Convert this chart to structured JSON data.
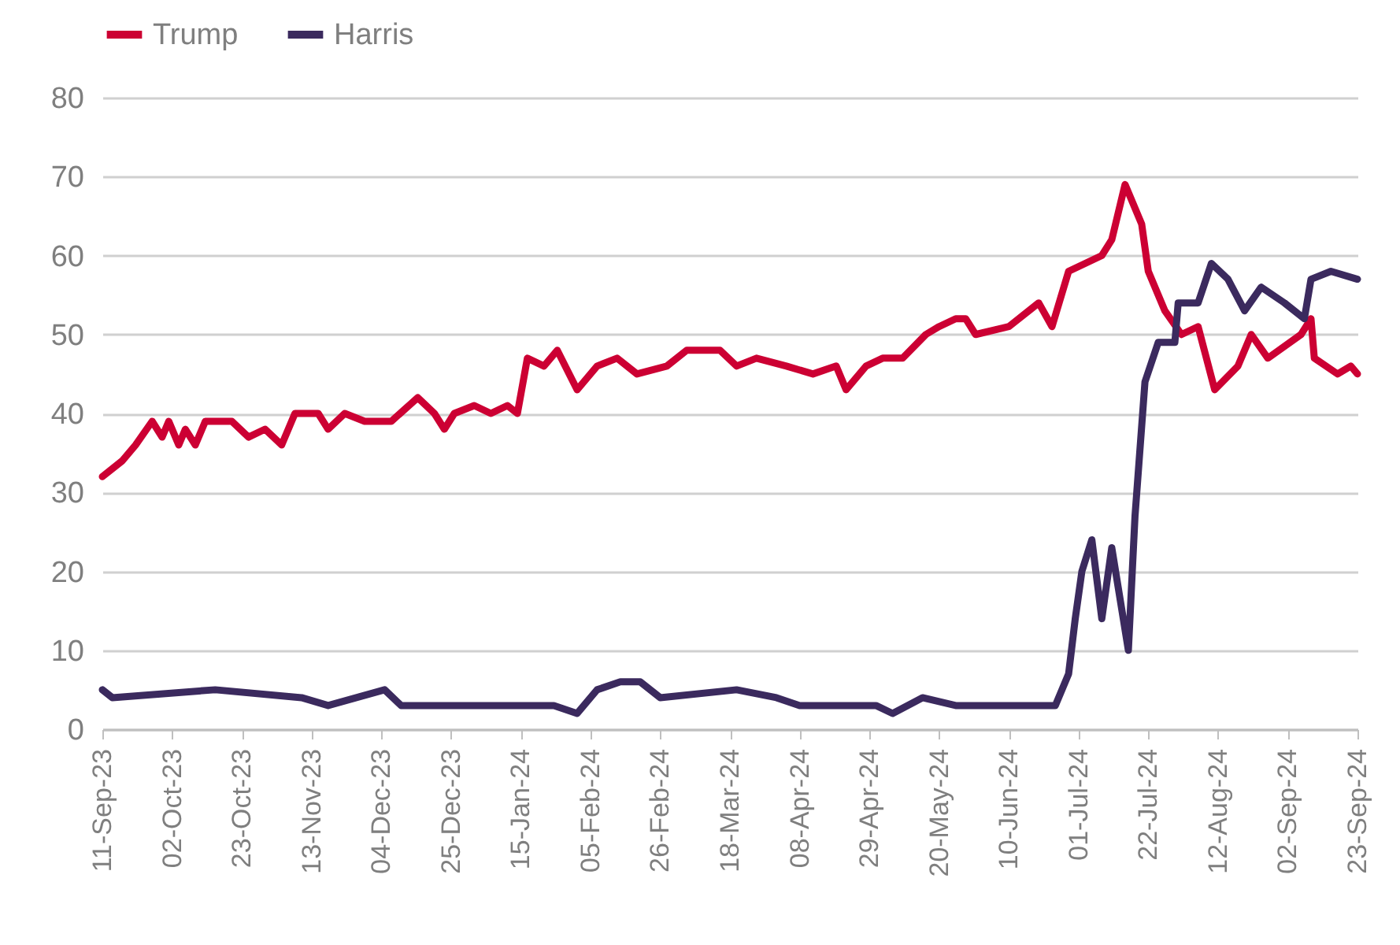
{
  "chart_data": {
    "type": "line",
    "legend": "top",
    "grid": "y",
    "xlim": [
      "2023-09-11",
      "2024-09-23"
    ],
    "ylim": [
      0,
      80
    ],
    "yticks": [
      0,
      10,
      20,
      30,
      40,
      50,
      60,
      70,
      80
    ],
    "xticks": [
      {
        "value": "2023-09-11",
        "label": "11-Sep-23"
      },
      {
        "value": "2023-10-02",
        "label": "02-Oct-23"
      },
      {
        "value": "2023-10-23",
        "label": "23-Oct-23"
      },
      {
        "value": "2023-11-13",
        "label": "13-Nov-23"
      },
      {
        "value": "2023-12-04",
        "label": "04-Dec-23"
      },
      {
        "value": "2023-12-25",
        "label": "25-Dec-23"
      },
      {
        "value": "2024-01-15",
        "label": "15-Jan-24"
      },
      {
        "value": "2024-02-05",
        "label": "05-Feb-24"
      },
      {
        "value": "2024-02-26",
        "label": "26-Feb-24"
      },
      {
        "value": "2024-03-18",
        "label": "18-Mar-24"
      },
      {
        "value": "2024-04-08",
        "label": "08-Apr-24"
      },
      {
        "value": "2024-04-29",
        "label": "29-Apr-24"
      },
      {
        "value": "2024-05-20",
        "label": "20-May-24"
      },
      {
        "value": "2024-06-10",
        "label": "10-Jun-24"
      },
      {
        "value": "2024-07-01",
        "label": "01-Jul-24"
      },
      {
        "value": "2024-07-22",
        "label": "22-Jul-24"
      },
      {
        "value": "2024-08-12",
        "label": "12-Aug-24"
      },
      {
        "value": "2024-09-02",
        "label": "02-Sep-24"
      },
      {
        "value": "2024-09-23",
        "label": "23-Sep-24"
      }
    ],
    "series": [
      {
        "name": "Trump",
        "color": "#cc0033",
        "x": [
          "2023-09-11",
          "2023-09-17",
          "2023-09-21",
          "2023-09-26",
          "2023-09-29",
          "2023-10-01",
          "2023-10-04",
          "2023-10-06",
          "2023-10-09",
          "2023-10-12",
          "2023-10-20",
          "2023-10-25",
          "2023-10-30",
          "2023-11-04",
          "2023-11-08",
          "2023-11-15",
          "2023-11-18",
          "2023-11-23",
          "2023-11-29",
          "2023-12-07",
          "2023-12-15",
          "2023-12-20",
          "2023-12-23",
          "2023-12-26",
          "2024-01-01",
          "2024-01-06",
          "2024-01-11",
          "2024-01-14",
          "2024-01-17",
          "2024-01-22",
          "2024-01-26",
          "2024-02-01",
          "2024-02-07",
          "2024-02-13",
          "2024-02-19",
          "2024-02-28",
          "2024-03-05",
          "2024-03-15",
          "2024-03-20",
          "2024-03-26",
          "2024-04-04",
          "2024-04-12",
          "2024-04-19",
          "2024-04-22",
          "2024-04-28",
          "2024-05-03",
          "2024-05-09",
          "2024-05-16",
          "2024-05-20",
          "2024-05-25",
          "2024-05-28",
          "2024-05-31",
          "2024-06-10",
          "2024-06-19",
          "2024-06-23",
          "2024-06-28",
          "2024-07-08",
          "2024-07-11",
          "2024-07-15",
          "2024-07-20",
          "2024-07-22",
          "2024-07-27",
          "2024-08-01",
          "2024-08-06",
          "2024-08-11",
          "2024-08-18",
          "2024-08-22",
          "2024-08-27",
          "2024-09-06",
          "2024-09-09",
          "2024-09-10",
          "2024-09-17",
          "2024-09-21",
          "2024-09-23"
        ],
        "values": [
          32,
          34,
          36,
          39,
          37,
          39,
          36,
          38,
          36,
          39,
          39,
          37,
          38,
          36,
          40,
          40,
          38,
          40,
          39,
          39,
          42,
          40,
          38,
          40,
          41,
          40,
          41,
          40,
          47,
          46,
          48,
          43,
          46,
          47,
          45,
          46,
          48,
          48,
          46,
          47,
          46,
          45,
          46,
          43,
          46,
          47,
          47,
          50,
          51,
          52,
          52,
          50,
          51,
          54,
          51,
          58,
          60,
          62,
          69,
          64,
          58,
          53,
          50,
          51,
          43,
          46,
          50,
          47,
          50,
          52,
          47,
          45,
          46,
          45
        ]
      },
      {
        "name": "Harris",
        "color": "#3b2a5e",
        "x": [
          "2023-09-11",
          "2023-09-14",
          "2023-10-15",
          "2023-11-10",
          "2023-11-18",
          "2023-12-05",
          "2023-12-10",
          "2024-01-25",
          "2024-02-01",
          "2024-02-07",
          "2024-02-14",
          "2024-02-20",
          "2024-02-26",
          "2024-03-20",
          "2024-04-01",
          "2024-04-08",
          "2024-05-01",
          "2024-05-06",
          "2024-05-15",
          "2024-05-25",
          "2024-06-15",
          "2024-06-24",
          "2024-06-28",
          "2024-06-30",
          "2024-07-02",
          "2024-07-05",
          "2024-07-08",
          "2024-07-11",
          "2024-07-16",
          "2024-07-18",
          "2024-07-21",
          "2024-07-25",
          "2024-07-30",
          "2024-07-31",
          "2024-08-06",
          "2024-08-10",
          "2024-08-15",
          "2024-08-20",
          "2024-08-25",
          "2024-09-01",
          "2024-09-07",
          "2024-09-09",
          "2024-09-15",
          "2024-09-23"
        ],
        "values": [
          5,
          4,
          5,
          4,
          3,
          5,
          3,
          3,
          2,
          5,
          6,
          6,
          4,
          5,
          4,
          3,
          3,
          2,
          4,
          3,
          3,
          3,
          7,
          14,
          20,
          24,
          14,
          23,
          10,
          27,
          44,
          49,
          49,
          54,
          54,
          59,
          57,
          53,
          56,
          54,
          52,
          57,
          58,
          57
        ]
      }
    ]
  }
}
